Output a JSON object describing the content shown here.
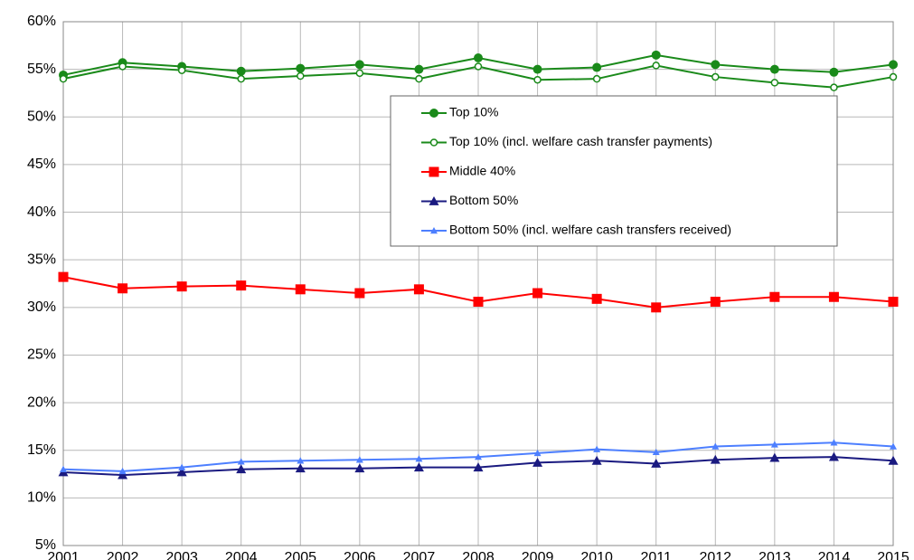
{
  "chart_data": {
    "type": "line",
    "categories": [
      "2001",
      "2002",
      "2003",
      "2004",
      "2005",
      "2006",
      "2007",
      "2008",
      "2009",
      "2010",
      "2011",
      "2012",
      "2013",
      "2014",
      "2015"
    ],
    "series": [
      {
        "name": "Top 10%",
        "color": "#1a8a1a",
        "marker": "circle",
        "values": [
          54.4,
          55.7,
          55.3,
          54.8,
          55.1,
          55.5,
          55.0,
          56.2,
          55.0,
          55.2,
          56.5,
          55.5,
          55.0,
          54.7,
          55.5
        ]
      },
      {
        "name": "Top 10% (incl. welfare cash transfer payments)",
        "color": "#1a8a1a",
        "marker": "circle-open",
        "values": [
          54.0,
          55.3,
          54.9,
          54.0,
          54.3,
          54.6,
          54.0,
          55.3,
          53.9,
          54.0,
          55.4,
          54.2,
          53.6,
          53.1,
          54.2
        ]
      },
      {
        "name": "Middle 40%",
        "color": "#ff0000",
        "marker": "square",
        "values": [
          33.2,
          32.0,
          32.2,
          32.3,
          31.9,
          31.5,
          31.9,
          30.6,
          31.5,
          30.9,
          30.0,
          30.6,
          31.1,
          31.1,
          30.6
        ]
      },
      {
        "name": "Bottom 50%",
        "color": "#1a1a80",
        "marker": "triangle",
        "values": [
          12.7,
          12.4,
          12.7,
          13.0,
          13.1,
          13.1,
          13.2,
          13.2,
          13.7,
          13.9,
          13.6,
          14.0,
          14.2,
          14.3,
          13.9
        ]
      },
      {
        "name": "Bottom 50% (incl. welfare cash transfers received)",
        "color": "#4d7fff",
        "marker": "triangle-small",
        "values": [
          13.0,
          12.8,
          13.2,
          13.8,
          13.9,
          14.0,
          14.1,
          14.3,
          14.7,
          15.1,
          14.8,
          15.4,
          15.6,
          15.8,
          15.4
        ]
      }
    ],
    "ylim": [
      5,
      60
    ],
    "yticks": [
      {
        "value": 5,
        "label": "5%"
      },
      {
        "value": 10,
        "label": "10%"
      },
      {
        "value": 15,
        "label": "15%"
      },
      {
        "value": 20,
        "label": "20%"
      },
      {
        "value": 25,
        "label": "25%"
      },
      {
        "value": 30,
        "label": "30%"
      },
      {
        "value": 35,
        "label": "35%"
      },
      {
        "value": 40,
        "label": "40%"
      },
      {
        "value": 45,
        "label": "45%"
      },
      {
        "value": 50,
        "label": "50%"
      },
      {
        "value": 55,
        "label": "55%"
      },
      {
        "value": 60,
        "label": "60%"
      }
    ],
    "grid": true
  }
}
